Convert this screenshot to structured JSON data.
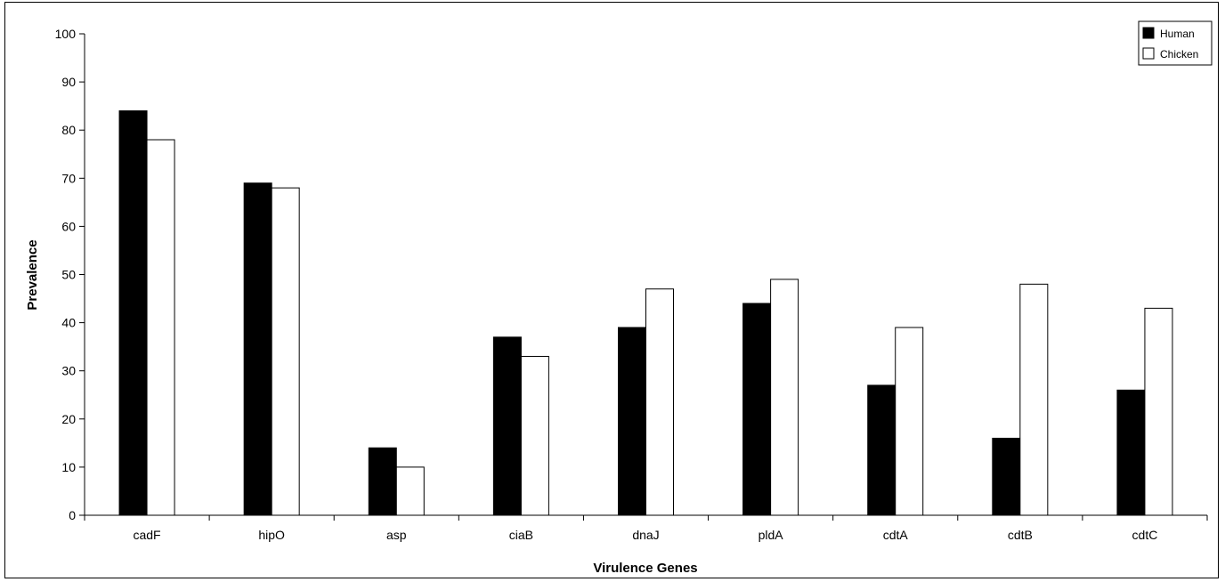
{
  "chart_data": {
    "type": "bar",
    "title": "",
    "xlabel": "Virulence Genes",
    "ylabel": "Prevalence",
    "ylim": [
      0,
      100
    ],
    "yticks": [
      0,
      10,
      20,
      30,
      40,
      50,
      60,
      70,
      80,
      90,
      100
    ],
    "grid": false,
    "legend_position": "top-right",
    "categories": [
      "cadF",
      "hipO",
      "asp",
      "ciaB",
      "dnaJ",
      "pldA",
      "cdtA",
      "cdtB",
      "cdtC"
    ],
    "series": [
      {
        "name": "Human",
        "color": "#000000",
        "values": [
          84,
          69,
          14,
          37,
          39,
          44,
          27,
          16,
          26
        ]
      },
      {
        "name": "Chicken",
        "color": "#ffffff",
        "values": [
          78,
          68,
          10,
          33,
          47,
          49,
          39,
          48,
          43
        ]
      }
    ]
  }
}
